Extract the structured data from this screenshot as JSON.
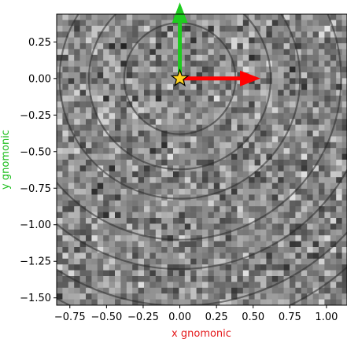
{
  "chart_data": {
    "type": "heatmap",
    "title": "",
    "xlabel": "x gnomonic",
    "ylabel": "y gnomonic",
    "xlabel_color": "#e41a1c",
    "ylabel_color": "#1fbf1f",
    "xlim": [
      -0.84,
      1.14
    ],
    "ylim": [
      -1.55,
      0.44
    ],
    "x_ticks": [
      -0.75,
      -0.5,
      -0.25,
      0.0,
      0.25,
      0.5,
      0.75,
      1.0
    ],
    "x_tick_labels": [
      "−0.75",
      "−0.50",
      "−0.25",
      "0.00",
      "0.25",
      "0.50",
      "0.75",
      "1.00"
    ],
    "y_ticks": [
      0.25,
      0.0,
      -0.25,
      -0.5,
      -0.75,
      -1.0,
      -1.25,
      -1.5
    ],
    "y_tick_labels": [
      "0.25",
      "0.00",
      "−0.25",
      "−0.50",
      "−0.75",
      "−1.00",
      "−1.25",
      "−1.50"
    ],
    "colormap": "gray",
    "grid": false,
    "rings": {
      "center": [
        0.0,
        0.0
      ],
      "radii": [
        0.38,
        0.62,
        0.82,
        1.1,
        1.3,
        1.55,
        1.72
      ]
    },
    "origin_marker": {
      "x": 0.0,
      "y": 0.0,
      "shape": "star",
      "color": "#ffd21f"
    },
    "arrows": [
      {
        "name": "x-direction",
        "dx": 0.55,
        "dy": 0.0,
        "color": "#ff0000"
      },
      {
        "name": "y-direction",
        "dx": 0.0,
        "dy": 0.52,
        "color": "#1fcc1f"
      }
    ]
  }
}
